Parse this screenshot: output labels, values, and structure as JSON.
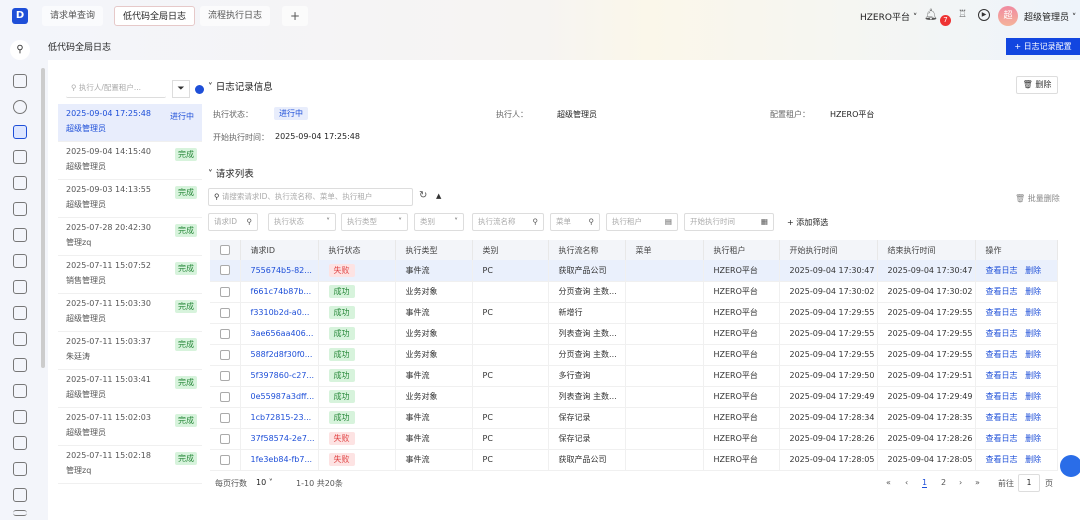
{
  "header": {
    "logo": "D",
    "tabs": [
      "请求单查询",
      "低代码全局日志",
      "流程执行日志"
    ],
    "active_tab": 1,
    "add_tab": "+",
    "tenant": "HZERO平台",
    "notif_count": "7",
    "avatar": "超",
    "user": "超级管理员"
  },
  "page": {
    "title": "低代码全局日志",
    "config_button": "+ 日志记录配置"
  },
  "left": {
    "search_placeholder": "执行人/配置租户...",
    "items": [
      {
        "time": "2025-09-04 17:25:48",
        "user": "超级管理员",
        "status": "进行中",
        "selected": true
      },
      {
        "time": "2025-09-04 14:15:40",
        "user": "超级管理员",
        "status": "完成"
      },
      {
        "time": "2025-09-03 14:13:55",
        "user": "超级管理员",
        "status": "完成"
      },
      {
        "time": "2025-07-28 20:42:30",
        "user": "管理zq",
        "status": "完成"
      },
      {
        "time": "2025-07-11 15:07:52",
        "user": "销售管理员",
        "status": "完成"
      },
      {
        "time": "2025-07-11 15:03:30",
        "user": "超级管理员",
        "status": "完成"
      },
      {
        "time": "2025-07-11 15:03:37",
        "user": "朱廷涛",
        "status": "完成"
      },
      {
        "time": "2025-07-11 15:03:41",
        "user": "超级管理员",
        "status": "完成"
      },
      {
        "time": "2025-07-11 15:02:03",
        "user": "超级管理员",
        "status": "完成"
      },
      {
        "time": "2025-07-11 15:02:18",
        "user": "管理zq",
        "status": "完成"
      }
    ]
  },
  "info": {
    "section": "日志记录信息",
    "delete": "删除",
    "status_label": "执行状态：",
    "status": "进行中",
    "executor_label": "执行人：",
    "executor": "超级管理员",
    "tenant_label": "配置租户：",
    "tenant": "HZERO平台",
    "start_label": "开始执行时间：",
    "start": "2025-09-04 17:25:48"
  },
  "requests": {
    "section": "请求列表",
    "search_placeholder": "请搜索请求ID、执行流名称、菜单、执行租户",
    "batch_delete": "批量删除",
    "add_filter": "+ 添加筛选",
    "filters": [
      "请求ID",
      "执行状态",
      "执行类型",
      "类别",
      "执行流名称",
      "菜单",
      "执行租户",
      "开始执行时间"
    ],
    "columns": [
      "请求ID",
      "执行状态",
      "执行类型",
      "类别",
      "执行流名称",
      "菜单",
      "执行租户",
      "开始执行时间",
      "结束执行时间",
      "操作"
    ],
    "view_label": "查看日志",
    "delete_label": "删除",
    "rows": [
      [
        "755674b5-82...",
        "失败",
        "事件流",
        "PC",
        "获取产品公司",
        "",
        "HZERO平台",
        "2025-09-04 17:30:47",
        "2025-09-04 17:30:47"
      ],
      [
        "f661c74b87b...",
        "成功",
        "业务对象",
        "",
        "分页查询 主数...",
        "",
        "HZERO平台",
        "2025-09-04 17:30:02",
        "2025-09-04 17:30:02"
      ],
      [
        "f3310b2d-a0...",
        "成功",
        "事件流",
        "PC",
        "新增行",
        "",
        "HZERO平台",
        "2025-09-04 17:29:55",
        "2025-09-04 17:29:55"
      ],
      [
        "3ae656aa406...",
        "成功",
        "业务对象",
        "",
        "列表查询 主数...",
        "",
        "HZERO平台",
        "2025-09-04 17:29:55",
        "2025-09-04 17:29:55"
      ],
      [
        "588f2d8f30f0...",
        "成功",
        "业务对象",
        "",
        "分页查询 主数...",
        "",
        "HZERO平台",
        "2025-09-04 17:29:55",
        "2025-09-04 17:29:55"
      ],
      [
        "5f397860-c27...",
        "成功",
        "事件流",
        "PC",
        "多行查询",
        "",
        "HZERO平台",
        "2025-09-04 17:29:50",
        "2025-09-04 17:29:51"
      ],
      [
        "0e55987a3dff...",
        "成功",
        "业务对象",
        "",
        "列表查询 主数...",
        "",
        "HZERO平台",
        "2025-09-04 17:29:49",
        "2025-09-04 17:29:49"
      ],
      [
        "1cb72815-23...",
        "成功",
        "事件流",
        "PC",
        "保存记录",
        "",
        "HZERO平台",
        "2025-09-04 17:28:34",
        "2025-09-04 17:28:35"
      ],
      [
        "37f58574-2e7...",
        "失败",
        "事件流",
        "PC",
        "保存记录",
        "",
        "HZERO平台",
        "2025-09-04 17:28:26",
        "2025-09-04 17:28:26"
      ],
      [
        "1fe3eb84-fb7...",
        "失败",
        "事件流",
        "PC",
        "获取产品公司",
        "",
        "HZERO平台",
        "2025-09-04 17:28:05",
        "2025-09-04 17:28:05"
      ]
    ]
  },
  "pagination": {
    "page_size_label": "每页行数",
    "page_size": "10",
    "range": "1-10 共20条",
    "pages": [
      "1",
      "2"
    ],
    "current": "1",
    "goto_label": "前往",
    "goto_value": "1",
    "page_unit": "页"
  }
}
